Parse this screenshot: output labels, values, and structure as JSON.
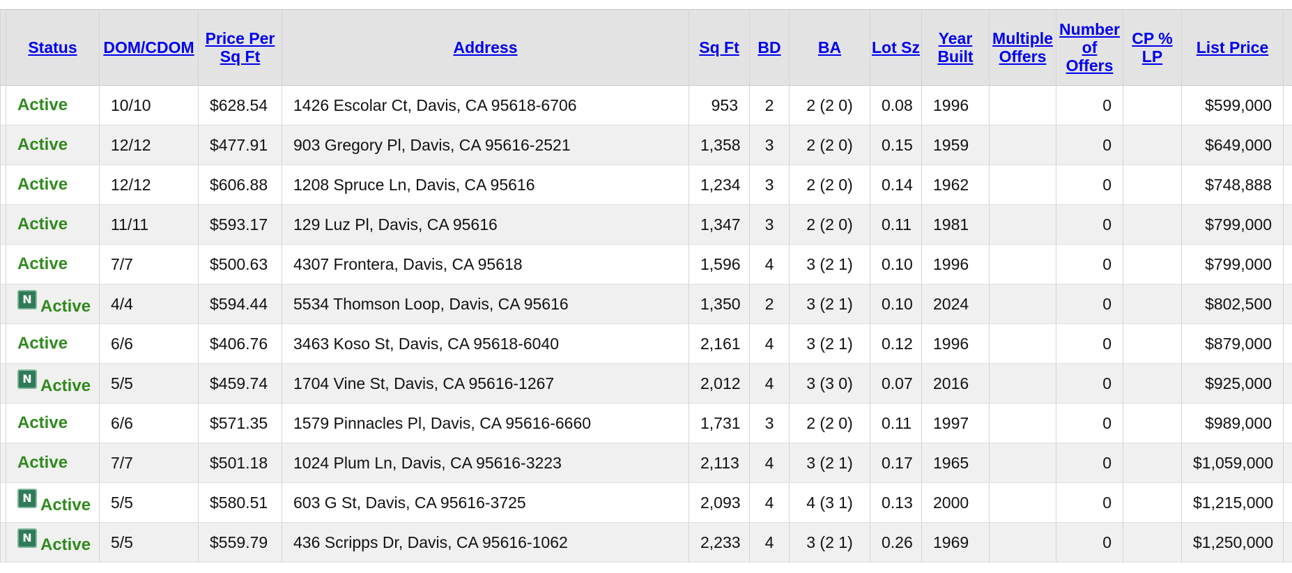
{
  "columns": {
    "status": "Status",
    "dom": "DOM/CDOM",
    "price_sqft": "Price Per Sq Ft",
    "address": "Address",
    "sqft": "Sq Ft",
    "bd": "BD",
    "ba": "BA",
    "lot": "Lot Sz",
    "year": "Year Built",
    "multiple": "Multiple Offers",
    "num_offers": "Number of Offers",
    "cp_lp": "CP % LP",
    "list_price": "List Price"
  },
  "badge_label": "N",
  "colors": {
    "status_active": "#2f8a1c",
    "header_link": "#0000ee",
    "header_bg": "#e3e3e3",
    "row_alt_bg": "#f0f0f0",
    "badge_bg": "#2f7a5a"
  },
  "rows": [
    {
      "new": false,
      "status": "Active",
      "dom": "10/10",
      "price_sqft": "$628.54",
      "address": "1426 Escolar Ct, Davis, CA 95618-6706",
      "sqft": "953",
      "bd": "2",
      "ba": "2 (2 0)",
      "lot": "0.08",
      "year": "1996",
      "multiple": "",
      "num_offers": "0",
      "cp_lp": "",
      "list_price": "$599,000"
    },
    {
      "new": false,
      "status": "Active",
      "dom": "12/12",
      "price_sqft": "$477.91",
      "address": "903 Gregory Pl, Davis, CA 95616-2521",
      "sqft": "1,358",
      "bd": "3",
      "ba": "2 (2 0)",
      "lot": "0.15",
      "year": "1959",
      "multiple": "",
      "num_offers": "0",
      "cp_lp": "",
      "list_price": "$649,000"
    },
    {
      "new": false,
      "status": "Active",
      "dom": "12/12",
      "price_sqft": "$606.88",
      "address": "1208 Spruce Ln, Davis, CA 95616",
      "sqft": "1,234",
      "bd": "3",
      "ba": "2 (2 0)",
      "lot": "0.14",
      "year": "1962",
      "multiple": "",
      "num_offers": "0",
      "cp_lp": "",
      "list_price": "$748,888"
    },
    {
      "new": false,
      "status": "Active",
      "dom": "11/11",
      "price_sqft": "$593.17",
      "address": "129 Luz Pl, Davis, CA 95616",
      "sqft": "1,347",
      "bd": "3",
      "ba": "2 (2 0)",
      "lot": "0.11",
      "year": "1981",
      "multiple": "",
      "num_offers": "0",
      "cp_lp": "",
      "list_price": "$799,000"
    },
    {
      "new": false,
      "status": "Active",
      "dom": "7/7",
      "price_sqft": "$500.63",
      "address": "4307 Frontera, Davis, CA 95618",
      "sqft": "1,596",
      "bd": "4",
      "ba": "3 (2 1)",
      "lot": "0.10",
      "year": "1996",
      "multiple": "",
      "num_offers": "0",
      "cp_lp": "",
      "list_price": "$799,000"
    },
    {
      "new": true,
      "status": "Active",
      "dom": "4/4",
      "price_sqft": "$594.44",
      "address": "5534 Thomson Loop, Davis, CA 95616",
      "sqft": "1,350",
      "bd": "2",
      "ba": "3 (2 1)",
      "lot": "0.10",
      "year": "2024",
      "multiple": "",
      "num_offers": "0",
      "cp_lp": "",
      "list_price": "$802,500"
    },
    {
      "new": false,
      "status": "Active",
      "dom": "6/6",
      "price_sqft": "$406.76",
      "address": "3463 Koso St, Davis, CA 95618-6040",
      "sqft": "2,161",
      "bd": "4",
      "ba": "3 (2 1)",
      "lot": "0.12",
      "year": "1996",
      "multiple": "",
      "num_offers": "0",
      "cp_lp": "",
      "list_price": "$879,000"
    },
    {
      "new": true,
      "status": "Active",
      "dom": "5/5",
      "price_sqft": "$459.74",
      "address": "1704 Vine St, Davis, CA 95616-1267",
      "sqft": "2,012",
      "bd": "4",
      "ba": "3 (3 0)",
      "lot": "0.07",
      "year": "2016",
      "multiple": "",
      "num_offers": "0",
      "cp_lp": "",
      "list_price": "$925,000"
    },
    {
      "new": false,
      "status": "Active",
      "dom": "6/6",
      "price_sqft": "$571.35",
      "address": "1579 Pinnacles Pl, Davis, CA 95616-6660",
      "sqft": "1,731",
      "bd": "3",
      "ba": "2 (2 0)",
      "lot": "0.11",
      "year": "1997",
      "multiple": "",
      "num_offers": "0",
      "cp_lp": "",
      "list_price": "$989,000"
    },
    {
      "new": false,
      "status": "Active",
      "dom": "7/7",
      "price_sqft": "$501.18",
      "address": "1024 Plum Ln, Davis, CA 95616-3223",
      "sqft": "2,113",
      "bd": "4",
      "ba": "3 (2 1)",
      "lot": "0.17",
      "year": "1965",
      "multiple": "",
      "num_offers": "0",
      "cp_lp": "",
      "list_price": "$1,059,000"
    },
    {
      "new": true,
      "status": "Active",
      "dom": "5/5",
      "price_sqft": "$580.51",
      "address": "603 G St, Davis, CA 95616-3725",
      "sqft": "2,093",
      "bd": "4",
      "ba": "4 (3 1)",
      "lot": "0.13",
      "year": "2000",
      "multiple": "",
      "num_offers": "0",
      "cp_lp": "",
      "list_price": "$1,215,000"
    },
    {
      "new": true,
      "status": "Active",
      "dom": "5/5",
      "price_sqft": "$559.79",
      "address": "436 Scripps Dr, Davis, CA 95616-1062",
      "sqft": "2,233",
      "bd": "4",
      "ba": "3 (2 1)",
      "lot": "0.26",
      "year": "1969",
      "multiple": "",
      "num_offers": "0",
      "cp_lp": "",
      "list_price": "$1,250,000"
    }
  ]
}
